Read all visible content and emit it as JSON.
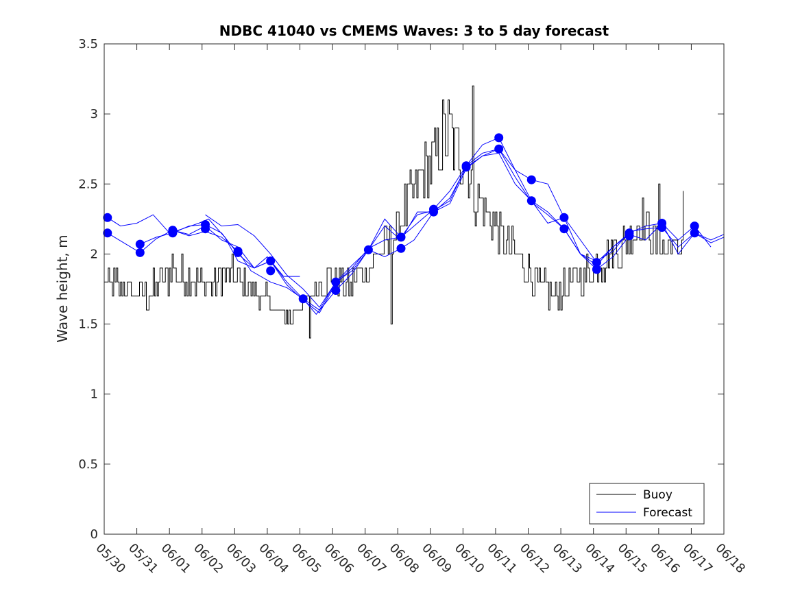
{
  "chart_data": {
    "type": "line",
    "title": "NDBC 41040 vs CMEMS Waves: 3 to 5 day forecast",
    "xlabel": "",
    "ylabel": "Wave height, m",
    "x_tick_labels": [
      "05/30",
      "05/31",
      "06/01",
      "06/02",
      "06/03",
      "06/04",
      "06/05",
      "06/06",
      "06/07",
      "06/08",
      "06/09",
      "06/10",
      "06/11",
      "06/12",
      "06/13",
      "06/14",
      "06/15",
      "06/16",
      "06/17",
      "06/18"
    ],
    "y_ticks": [
      0,
      0.5,
      1,
      1.5,
      2,
      2.5,
      3,
      3.5
    ],
    "y_tick_labels": [
      "0",
      "0.5",
      "1",
      "1.5",
      "2",
      "2.5",
      "3",
      "3.5"
    ],
    "xlim_days": [
      0,
      19
    ],
    "ylim": [
      0,
      3.5
    ],
    "grid": false,
    "legend_position": "bottom-right",
    "legend": [
      {
        "label": "Buoy",
        "color": "#000000"
      },
      {
        "label": "Forecast",
        "color": "#0000ff"
      }
    ],
    "colors": {
      "buoy": "#000000",
      "forecast": "#0000ff",
      "marker": "#0000ff"
    },
    "buoy_anchor": {
      "x_days": [
        0,
        0.3,
        0.6,
        0.9,
        1.2,
        1.5,
        1.8,
        2.1,
        2.4,
        2.7,
        3.0,
        3.3,
        3.6,
        3.9,
        4.2,
        4.5,
        4.8,
        5.1,
        5.4,
        5.7,
        6.0,
        6.3,
        6.6,
        6.9,
        7.2,
        7.5,
        7.8,
        8.1,
        8.4,
        8.7,
        9.0,
        9.3,
        9.6,
        9.9,
        10.2,
        10.4,
        10.6,
        10.8,
        11.0,
        11.2,
        11.4,
        11.7,
        12.0,
        12.3,
        12.6,
        12.9,
        13.2,
        13.5,
        13.8,
        14.1,
        14.4,
        14.7,
        15.0,
        15.3,
        15.6,
        15.9,
        16.2,
        16.5,
        16.8,
        17.1,
        17.4,
        17.7
      ],
      "y": [
        1.8,
        1.8,
        1.75,
        1.7,
        1.7,
        1.75,
        1.8,
        1.9,
        1.85,
        1.8,
        1.8,
        1.75,
        1.85,
        1.85,
        1.8,
        1.75,
        1.7,
        1.65,
        1.55,
        1.55,
        1.6,
        1.7,
        1.8,
        1.85,
        1.8,
        1.75,
        1.85,
        1.9,
        2.0,
        2.05,
        2.2,
        2.35,
        2.5,
        2.6,
        2.7,
        2.85,
        2.85,
        2.75,
        2.7,
        2.55,
        2.4,
        2.3,
        2.2,
        2.1,
        2.0,
        1.9,
        1.8,
        1.75,
        1.7,
        1.75,
        1.8,
        1.85,
        1.9,
        1.95,
        2.0,
        2.05,
        2.15,
        2.25,
        2.1,
        2.05,
        2.05,
        2.05
      ],
      "amp": [
        0.1,
        0.1,
        0.1,
        0.05,
        0.1,
        0.12,
        0.12,
        0.15,
        0.12,
        0.1,
        0.1,
        0.1,
        0.12,
        0.12,
        0.12,
        0.1,
        0.1,
        0.08,
        0.06,
        0.06,
        0.06,
        0.1,
        0.12,
        0.12,
        0.12,
        0.12,
        0.12,
        0.12,
        0.12,
        0.15,
        0.15,
        0.2,
        0.2,
        0.25,
        0.25,
        0.3,
        0.3,
        0.25,
        0.25,
        0.25,
        0.2,
        0.2,
        0.15,
        0.15,
        0.15,
        0.15,
        0.12,
        0.12,
        0.12,
        0.12,
        0.12,
        0.12,
        0.15,
        0.15,
        0.15,
        0.15,
        0.15,
        0.2,
        0.12,
        0.12,
        0.1,
        0.1
      ]
    },
    "buoy_spikes": [
      {
        "x_days": 6.3,
        "y": 1.4
      },
      {
        "x_days": 8.8,
        "y": 1.5
      },
      {
        "x_days": 11.3,
        "y": 3.2
      },
      {
        "x_days": 17.0,
        "y": 2.5
      },
      {
        "x_days": 17.9,
        "y": 2.4
      },
      {
        "x_days": 17.75,
        "y": 2.45
      }
    ],
    "series": [
      {
        "label": "Forecast",
        "x_days": [
          0.1,
          0.5,
          1.0,
          1.5,
          2.0,
          2.4,
          2.9,
          3.2,
          3.7,
          4.1,
          4.6,
          5.0,
          5.5,
          6.0
        ],
        "y": [
          2.26,
          2.2,
          2.22,
          2.28,
          2.15,
          2.18,
          2.22,
          2.25,
          2.12,
          1.95,
          1.9,
          1.98,
          1.84,
          1.84
        ]
      },
      {
        "label": "Forecast",
        "x_days": [
          0.1,
          0.6,
          1.1,
          1.6,
          2.1,
          2.6,
          3.1,
          3.6,
          4.1,
          4.5,
          5.1,
          5.6,
          6.1,
          6.5,
          7.1,
          7.6,
          8.1,
          8.6,
          9.1,
          9.5,
          10.1,
          10.6,
          11.1,
          11.6,
          12.1,
          12.6,
          13.1,
          13.6,
          14.1,
          14.6,
          15.1,
          15.6,
          16.1
        ],
        "y": [
          2.15,
          2.08,
          2.01,
          2.11,
          2.17,
          2.13,
          2.16,
          2.12,
          2.02,
          1.88,
          1.8,
          1.76,
          1.68,
          1.57,
          1.74,
          1.86,
          2.03,
          1.98,
          2.04,
          2.1,
          2.3,
          2.4,
          2.62,
          2.7,
          2.75,
          2.6,
          2.38,
          2.3,
          2.18,
          2.0,
          1.89,
          1.98,
          2.13
        ]
      },
      {
        "label": "Forecast",
        "x_days": [
          1.1,
          1.6,
          2.1,
          2.6,
          3.1,
          3.6,
          4.1,
          4.6,
          5.1,
          5.6,
          6.1,
          6.6,
          7.1,
          7.6,
          8.1,
          8.6,
          9.1,
          9.6,
          10.1,
          10.6,
          11.1,
          11.6,
          12.1,
          12.6,
          13.1,
          13.6,
          14.1,
          14.6,
          15.1,
          15.6,
          16.1,
          16.6,
          17.1,
          17.6,
          18.1,
          18.6
        ],
        "y": [
          2.07,
          2.12,
          2.15,
          2.2,
          2.21,
          2.15,
          2.0,
          1.9,
          1.95,
          1.8,
          1.68,
          1.6,
          1.8,
          1.92,
          2.03,
          2.25,
          2.12,
          2.22,
          2.32,
          2.45,
          2.63,
          2.78,
          2.83,
          2.6,
          2.53,
          2.5,
          2.26,
          2.1,
          1.94,
          2.05,
          2.15,
          2.2,
          2.22,
          2.1,
          2.2,
          2.05
        ]
      },
      {
        "label": "Forecast",
        "x_days": [
          2.1,
          2.6,
          3.1,
          3.6,
          4.1,
          4.6,
          5.1,
          5.6,
          6.1,
          6.6,
          7.1,
          7.6,
          8.1,
          8.6,
          9.1,
          9.6,
          10.1,
          10.6,
          11.1,
          11.6,
          12.1,
          12.6,
          13.1,
          13.6,
          14.1,
          14.6,
          15.1,
          15.6,
          16.1,
          16.6,
          17.1,
          17.6,
          18.1,
          18.6,
          19.0
        ],
        "y": [
          2.17,
          2.14,
          2.2,
          2.1,
          2.05,
          1.9,
          1.95,
          1.78,
          1.67,
          1.58,
          1.79,
          1.9,
          2.04,
          2.1,
          2.12,
          2.28,
          2.31,
          2.38,
          2.63,
          2.72,
          2.75,
          2.55,
          2.37,
          2.28,
          2.18,
          2.0,
          1.95,
          2.02,
          2.16,
          2.18,
          2.19,
          2.05,
          2.15,
          2.08,
          2.12
        ]
      },
      {
        "label": "Forecast",
        "x_days": [
          3.1,
          3.6,
          4.1,
          4.6,
          5.1,
          5.6,
          6.1,
          6.6,
          7.1,
          7.6,
          8.1,
          8.6,
          9.1,
          9.6,
          10.1,
          10.6,
          11.1,
          11.6,
          12.1,
          12.6,
          13.1,
          13.6,
          14.1,
          14.6,
          15.1,
          15.6,
          16.1,
          16.6,
          17.1,
          17.6,
          18.1,
          18.6,
          19.0
        ],
        "y": [
          2.28,
          2.2,
          2.21,
          2.13,
          2.0,
          1.85,
          1.75,
          1.62,
          1.8,
          1.88,
          2.03,
          2.2,
          2.1,
          2.3,
          2.3,
          2.36,
          2.61,
          2.7,
          2.72,
          2.5,
          2.38,
          2.22,
          2.26,
          2.0,
          1.92,
          2.05,
          2.14,
          2.1,
          2.22,
          2.0,
          2.15,
          2.1,
          2.14
        ]
      }
    ],
    "markers": [
      {
        "x_days": 0.1,
        "y": 2.26
      },
      {
        "x_days": 0.1,
        "y": 2.15
      },
      {
        "x_days": 1.1,
        "y": 2.07
      },
      {
        "x_days": 1.1,
        "y": 2.01
      },
      {
        "x_days": 2.1,
        "y": 2.17
      },
      {
        "x_days": 2.1,
        "y": 2.15
      },
      {
        "x_days": 3.1,
        "y": 2.21
      },
      {
        "x_days": 3.1,
        "y": 2.18
      },
      {
        "x_days": 4.1,
        "y": 2.02
      },
      {
        "x_days": 4.1,
        "y": 2.01
      },
      {
        "x_days": 5.1,
        "y": 1.95
      },
      {
        "x_days": 5.1,
        "y": 1.88
      },
      {
        "x_days": 6.1,
        "y": 1.68
      },
      {
        "x_days": 7.1,
        "y": 1.8
      },
      {
        "x_days": 7.1,
        "y": 1.74
      },
      {
        "x_days": 8.1,
        "y": 2.03
      },
      {
        "x_days": 9.1,
        "y": 2.12
      },
      {
        "x_days": 9.1,
        "y": 2.04
      },
      {
        "x_days": 10.1,
        "y": 2.32
      },
      {
        "x_days": 10.1,
        "y": 2.3
      },
      {
        "x_days": 11.1,
        "y": 2.63
      },
      {
        "x_days": 11.1,
        "y": 2.62
      },
      {
        "x_days": 12.1,
        "y": 2.83
      },
      {
        "x_days": 12.1,
        "y": 2.75
      },
      {
        "x_days": 13.1,
        "y": 2.53
      },
      {
        "x_days": 13.1,
        "y": 2.38
      },
      {
        "x_days": 14.1,
        "y": 2.26
      },
      {
        "x_days": 14.1,
        "y": 2.18
      },
      {
        "x_days": 15.1,
        "y": 1.94
      },
      {
        "x_days": 15.1,
        "y": 1.89
      },
      {
        "x_days": 16.1,
        "y": 2.15
      },
      {
        "x_days": 16.1,
        "y": 2.13
      },
      {
        "x_days": 17.1,
        "y": 2.22
      },
      {
        "x_days": 17.1,
        "y": 2.19
      },
      {
        "x_days": 18.1,
        "y": 2.2
      },
      {
        "x_days": 18.1,
        "y": 2.15
      }
    ]
  }
}
